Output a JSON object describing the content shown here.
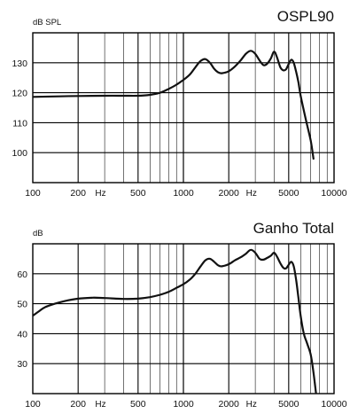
{
  "chart_data": [
    {
      "type": "line",
      "title": "OSPL90",
      "ylabel": "dB SPL",
      "xscale": "log",
      "xlim": [
        100,
        10000
      ],
      "ylim": [
        90,
        140
      ],
      "yticks": [
        100,
        110,
        120,
        130
      ],
      "xticks": [
        "100",
        "200",
        "Hz",
        "500",
        "1000",
        "2000",
        "Hz",
        "5000",
        "10000"
      ],
      "grid": true,
      "x": [
        100,
        150,
        200,
        300,
        400,
        500,
        600,
        700,
        800,
        900,
        1000,
        1100,
        1200,
        1300,
        1400,
        1500,
        1600,
        1700,
        1800,
        2000,
        2200,
        2400,
        2600,
        2800,
        3000,
        3200,
        3400,
        3600,
        3800,
        4000,
        4200,
        4400,
        4600,
        4800,
        5000,
        5200,
        5400,
        5600,
        5800,
        6000,
        6500,
        7000,
        7300
      ],
      "y": [
        118.6,
        118.8,
        118.9,
        119.0,
        119.0,
        119.0,
        119.3,
        120.0,
        121.3,
        122.7,
        124.3,
        126.0,
        128.5,
        130.6,
        131.2,
        130.0,
        128.0,
        126.8,
        126.5,
        127.2,
        128.8,
        130.8,
        133.0,
        134.0,
        133.0,
        130.8,
        129.2,
        129.7,
        131.4,
        133.7,
        131.5,
        128.5,
        127.5,
        127.8,
        129.6,
        131.0,
        130.0,
        127.0,
        123.5,
        119.0,
        111.0,
        104.0,
        98.0
      ]
    },
    {
      "type": "line",
      "title": "Ganho Total",
      "ylabel": "dB",
      "xscale": "log",
      "xlim": [
        100,
        10000
      ],
      "ylim": [
        20,
        70
      ],
      "yticks": [
        30,
        40,
        50,
        60
      ],
      "xticks": [
        "100",
        "200",
        "Hz",
        "500",
        "1000",
        "2000",
        "Hz",
        "5000",
        "10000"
      ],
      "grid": true,
      "x": [
        100,
        110,
        120,
        140,
        160,
        200,
        250,
        300,
        400,
        500,
        600,
        700,
        800,
        900,
        1000,
        1100,
        1200,
        1300,
        1400,
        1500,
        1600,
        1700,
        1800,
        2000,
        2200,
        2400,
        2600,
        2800,
        3000,
        3200,
        3400,
        3600,
        3800,
        4000,
        4200,
        4400,
        4600,
        4800,
        5000,
        5200,
        5400,
        5600,
        5800,
        6000,
        6300,
        6600,
        7000,
        7300,
        7600
      ],
      "y": [
        46.0,
        47.5,
        48.8,
        50.0,
        50.8,
        51.7,
        52.0,
        51.9,
        51.6,
        51.7,
        52.2,
        53.0,
        54.0,
        55.3,
        56.5,
        58.0,
        60.0,
        62.5,
        64.5,
        65.0,
        64.0,
        62.8,
        62.5,
        63.2,
        64.5,
        65.5,
        66.7,
        68.0,
        67.0,
        65.0,
        64.7,
        65.3,
        66.0,
        67.0,
        65.5,
        63.5,
        62.0,
        61.8,
        63.0,
        64.0,
        62.5,
        58.0,
        52.0,
        46.0,
        40.0,
        37.0,
        33.0,
        27.0,
        20.0
      ]
    }
  ]
}
